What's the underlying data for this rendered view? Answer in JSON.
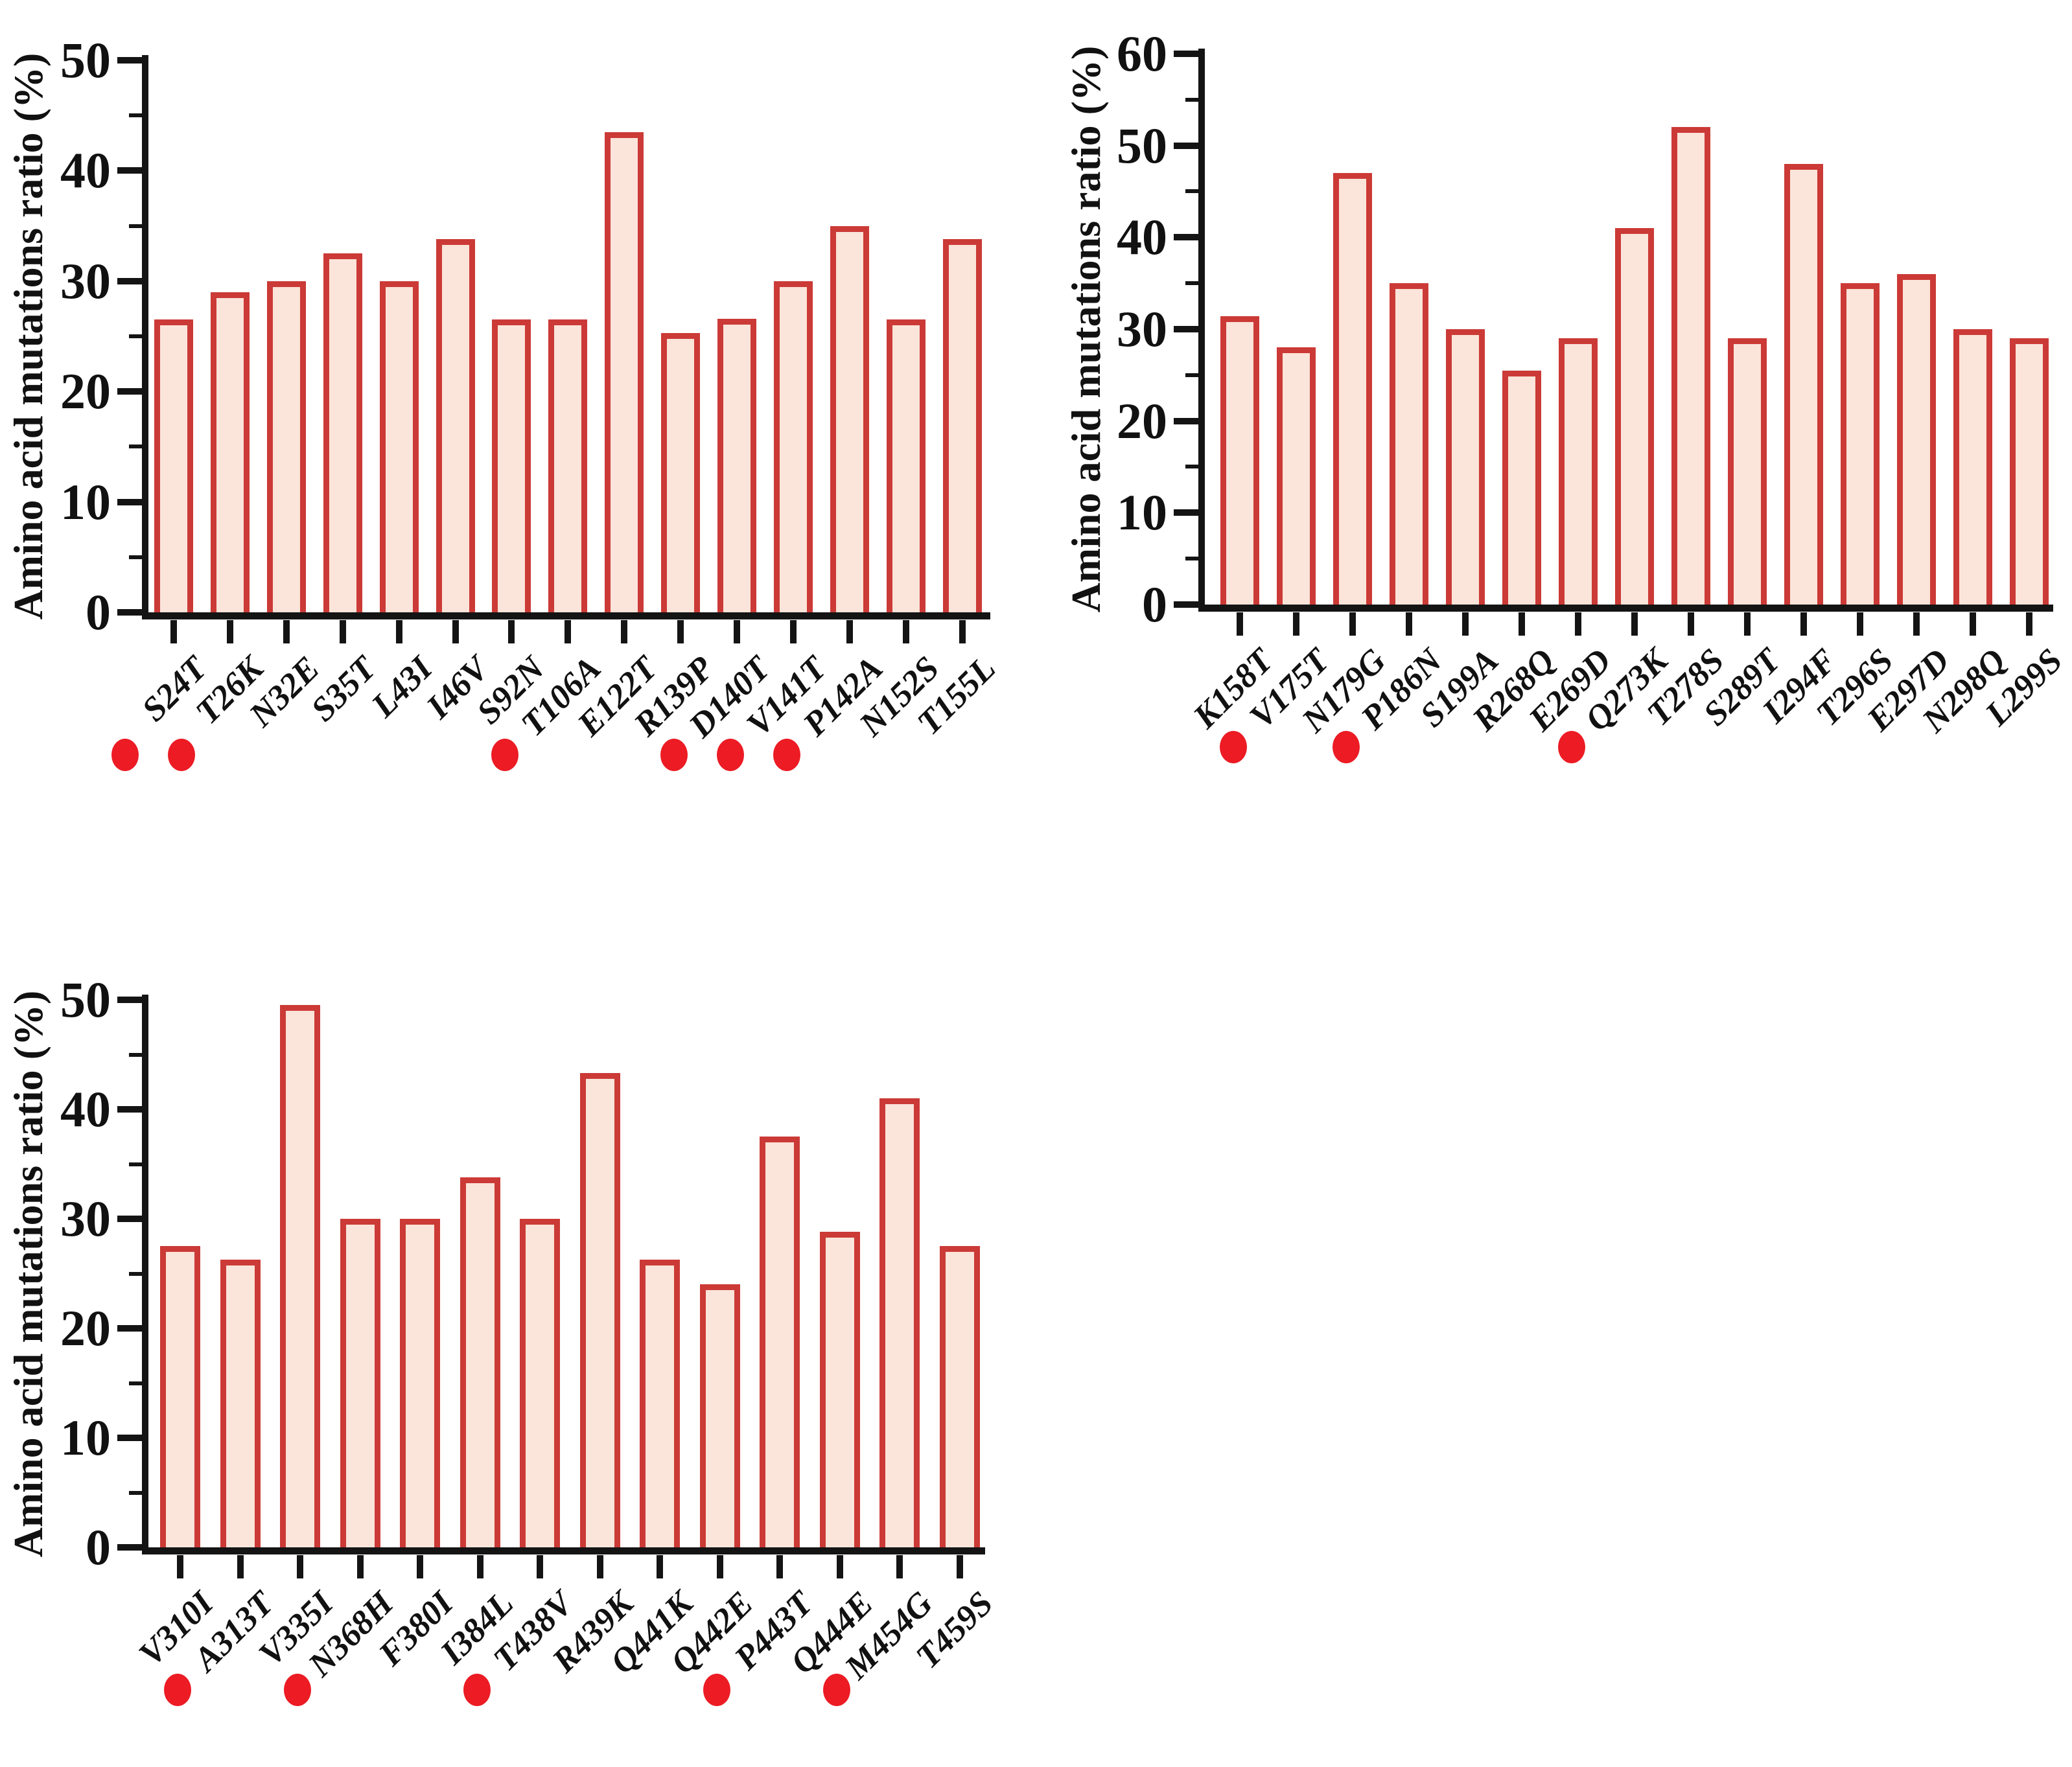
{
  "figure": {
    "background": "#ffffff",
    "colors": {
      "bar_fill": "#FBE4DA",
      "bar_border": "#CB3A36",
      "axis": "#141414",
      "text": "#111111",
      "red_dot": "#EC1B24"
    }
  },
  "chart_data": [
    {
      "type": "bar",
      "title": "",
      "xlabel": "",
      "ylabel": "Amino acid mutations ratio (%)",
      "ylim": [
        0,
        50
      ],
      "yticks": [
        0,
        10,
        20,
        30,
        40,
        50
      ],
      "minor_tick_step": 5,
      "grid": false,
      "legend": "none",
      "categories": [
        "S24T",
        "T26K",
        "N32E",
        "S35T",
        "L43I",
        "I46V",
        "S92N",
        "T106A",
        "E122T",
        "R139P",
        "D140T",
        "V141T",
        "P142A",
        "N152S",
        "T155L"
      ],
      "values": [
        26.5,
        29,
        30,
        32.5,
        30,
        33.8,
        26.5,
        26.5,
        43.5,
        25.3,
        26.6,
        30,
        35,
        26.5,
        33.8
      ],
      "red_dot_marked": [
        "S24T",
        "T26K",
        "T106A",
        "D140T",
        "V141T",
        "P142A"
      ]
    },
    {
      "type": "bar",
      "title": "",
      "xlabel": "",
      "ylabel": "Amino acid mutations ratio (%)",
      "ylim": [
        0,
        60
      ],
      "yticks": [
        0,
        10,
        20,
        30,
        40,
        50,
        60
      ],
      "minor_tick_step": 5,
      "grid": false,
      "legend": "none",
      "categories": [
        "K158T",
        "V175T",
        "N179G",
        "P186N",
        "S199A",
        "R268Q",
        "E269D",
        "Q273K",
        "T278S",
        "S289T",
        "I294F",
        "T296S",
        "E297D",
        "N298Q",
        "L299S"
      ],
      "values": [
        31.4,
        28,
        47,
        35,
        30,
        25.5,
        29,
        41,
        52,
        29,
        48,
        35,
        36,
        30,
        29
      ],
      "red_dot_marked": [
        "V175T",
        "P186N",
        "Q273K"
      ]
    },
    {
      "type": "bar",
      "title": "",
      "xlabel": "",
      "ylabel": "Amino acid mutations ratio (%)",
      "ylim": [
        0,
        50
      ],
      "yticks": [
        0,
        10,
        20,
        30,
        40,
        50
      ],
      "minor_tick_step": 5,
      "grid": false,
      "legend": "none",
      "categories": [
        "V310I",
        "A313T",
        "V335I",
        "N368H",
        "F380I",
        "I384L",
        "T438V",
        "R439K",
        "Q441K",
        "Q442E",
        "P443T",
        "Q444E",
        "M454G",
        "T459S"
      ],
      "values": [
        27.5,
        26.3,
        49.5,
        30,
        30,
        33.8,
        30,
        43.3,
        26.3,
        24,
        37.5,
        28.8,
        41,
        27.5
      ],
      "red_dot_marked": [
        "A313T",
        "N368H",
        "T438V",
        "P443T",
        "M454G"
      ]
    }
  ]
}
